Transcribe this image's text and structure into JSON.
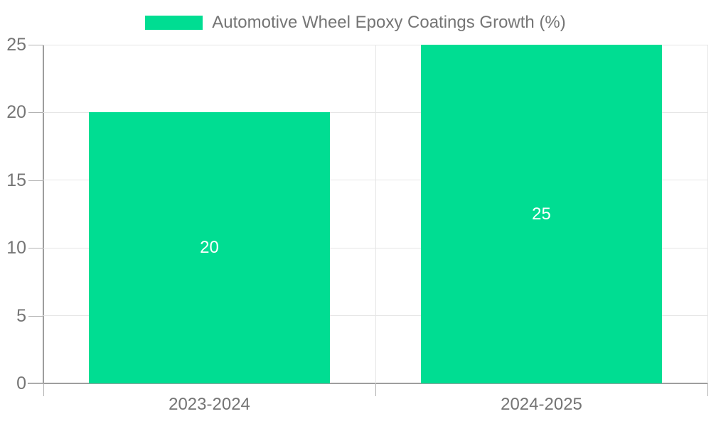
{
  "legend": {
    "label": "Automotive Wheel Epoxy Coatings Growth (%)"
  },
  "chart_data": {
    "type": "bar",
    "title": "Automotive Wheel Epoxy Coatings Growth (%)",
    "series_name": "Automotive Wheel Epoxy Coatings Growth (%)",
    "categories": [
      "2023-2024",
      "2024-2025"
    ],
    "values": [
      20,
      25
    ],
    "data_labels": [
      "20",
      "25"
    ],
    "xlabel": "",
    "ylabel": "",
    "ylim": [
      0,
      25
    ],
    "yticks": [
      0,
      5,
      10,
      15,
      20,
      25
    ],
    "grid": true,
    "legend_position": "top-center",
    "colors": {
      "bar": "#00DD92",
      "data_label": "#FFFFFF",
      "axis_line": "#9E9E9E",
      "tick_line": "#B3B3B3",
      "gridline": "#E6E6E6",
      "text": "#757575",
      "background": "#FFFFFF"
    }
  }
}
